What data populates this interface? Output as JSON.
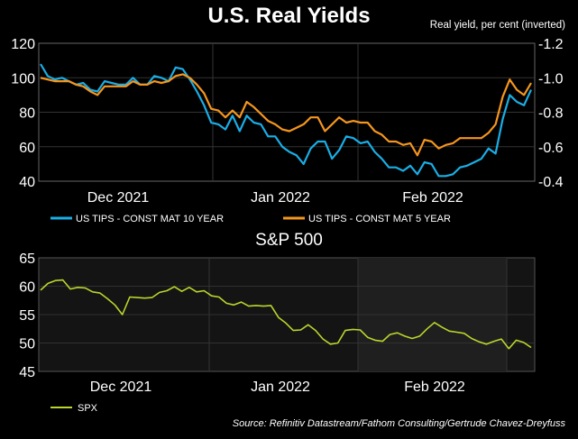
{
  "chart_data": [
    {
      "type": "line",
      "title": "U.S. Real Yields",
      "subtitle": "Real yield, per cent (inverted)",
      "x_labels": [
        "Dec 2021",
        "Jan 2022",
        "Feb 2022"
      ],
      "left_axis": {
        "ylim": [
          40,
          120
        ],
        "ticks": [
          40,
          60,
          80,
          100,
          120
        ],
        "labels": [
          "40",
          "60",
          "80",
          "100",
          "120"
        ]
      },
      "right_axis": {
        "ylim": [
          -0.4,
          -1.2
        ],
        "inverted": true,
        "ticks": [
          -0.4,
          -0.6,
          -0.8,
          -1.0,
          -1.2
        ],
        "labels": [
          "-0.4",
          "-0.6",
          "-0.8",
          "-1.0",
          "-1.2"
        ]
      },
      "series": [
        {
          "name": "US TIPS - CONST MAT 10 YEAR",
          "color": "#1aaee6",
          "values": [
            108,
            101,
            99,
            100,
            98,
            96,
            97,
            93,
            92,
            98,
            97,
            96,
            96,
            100,
            96,
            96,
            101,
            100,
            98,
            106,
            105,
            99,
            92,
            84,
            74,
            73,
            70,
            78,
            69,
            78,
            74,
            73,
            66,
            66,
            60,
            57,
            55,
            50,
            59,
            63,
            63,
            53,
            58,
            66,
            65,
            62,
            63,
            57,
            53,
            48,
            48,
            46,
            49,
            44,
            51,
            50,
            43,
            43,
            44,
            48,
            49,
            51,
            53,
            59,
            56,
            76,
            90,
            86,
            84,
            93
          ]
        },
        {
          "name": "US TIPS - CONST MAT 5 YEAR",
          "color": "#f4961e",
          "values": [
            100,
            99,
            98,
            98,
            98,
            96,
            95,
            92,
            90,
            95,
            95,
            95,
            95,
            98,
            96,
            96,
            98,
            97,
            98,
            101,
            102,
            100,
            96,
            91,
            82,
            81,
            77,
            81,
            77,
            86,
            83,
            79,
            75,
            73,
            70,
            69,
            71,
            73,
            77,
            77,
            69,
            73,
            77,
            74,
            75,
            74,
            74,
            69,
            67,
            63,
            63,
            61,
            62,
            55,
            64,
            63,
            59,
            61,
            62,
            65,
            65,
            65,
            65,
            68,
            73,
            89,
            99,
            93,
            90,
            97
          ]
        }
      ]
    },
    {
      "type": "line",
      "title": "S&P 500",
      "x_labels": [
        "Dec 2021",
        "Jan 2022",
        "Feb 2022"
      ],
      "ylim": [
        45,
        65
      ],
      "ticks": [
        45,
        50,
        55,
        60,
        65
      ],
      "tick_labels": [
        "45",
        "50",
        "55",
        "60",
        "65"
      ],
      "series": [
        {
          "name": "SPX",
          "color": "#b9d62c",
          "values": [
            59.3,
            60.5,
            61.0,
            61.1,
            59.5,
            59.8,
            59.7,
            59.0,
            58.8,
            57.8,
            56.7,
            55.0,
            58.1,
            58.0,
            57.9,
            58.0,
            58.9,
            59.2,
            59.9,
            59.1,
            59.8,
            59.0,
            59.2,
            58.3,
            58.1,
            57.0,
            56.7,
            57.2,
            56.5,
            56.6,
            56.5,
            56.6,
            54.5,
            53.5,
            52.2,
            52.3,
            53.2,
            52.2,
            50.7,
            49.8,
            50.0,
            52.2,
            52.4,
            52.3,
            51.0,
            50.5,
            50.3,
            51.5,
            51.8,
            51.2,
            50.8,
            51.2,
            52.5,
            53.6,
            52.8,
            52.1,
            51.9,
            51.7,
            50.8,
            50.2,
            49.8,
            50.3,
            50.7,
            49.0,
            50.5,
            50.1,
            49.2
          ]
        }
      ]
    }
  ],
  "source": "Source: Refinitiv Datastream/Fathom Consulting/Gertrude Chavez-Dreyfuss"
}
